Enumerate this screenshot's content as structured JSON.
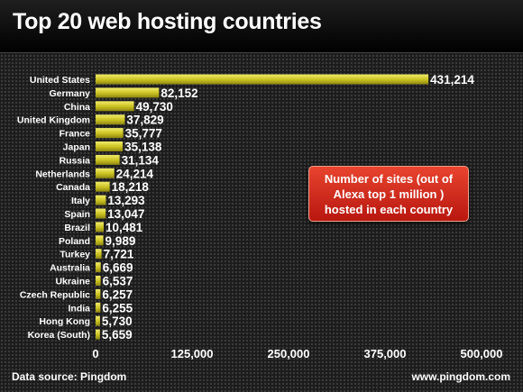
{
  "title": "Top 20 web hosting countries",
  "annotation": "Number of sites (out of Alexa top 1 million ) hosted in each country",
  "footer": {
    "source": "Data source: Pingdom",
    "site": "www.pingdom.com"
  },
  "colors": {
    "bar": "#c9c020",
    "bar_highlight": "#f2ec6a",
    "callout": "#d02b1c"
  },
  "chart_data": {
    "type": "bar",
    "orientation": "horizontal",
    "title": "Top 20 web hosting countries",
    "categories": [
      "United States",
      "Germany",
      "China",
      "United Kingdom",
      "France",
      "Japan",
      "Russia",
      "Netherlands",
      "Canada",
      "Italy",
      "Spain",
      "Brazil",
      "Poland",
      "Turkey",
      "Australia",
      "Ukraine",
      "Czech Republic",
      "India",
      "Hong Kong",
      "Korea (South)"
    ],
    "values": [
      431214,
      82152,
      49730,
      37829,
      35777,
      35138,
      31134,
      24214,
      18218,
      13293,
      13047,
      10481,
      9989,
      7721,
      6669,
      6537,
      6257,
      6255,
      5730,
      5659
    ],
    "value_labels": [
      "431,214",
      "82,152",
      "49,730",
      "37,829",
      "35,777",
      "35,138",
      "31,134",
      "24,214",
      "18,218",
      "13,293",
      "13,047",
      "10,481",
      "9,989",
      "7,721",
      "6,669",
      "6,537",
      "6,257",
      "6,255",
      "5,730",
      "5,659"
    ],
    "xlim": [
      0,
      500000
    ],
    "xticks": [
      0,
      125000,
      250000,
      375000,
      500000
    ],
    "xtick_labels": [
      "0",
      "125,000",
      "250,000",
      "375,000",
      "500,000"
    ],
    "grid": false,
    "legend": "none"
  }
}
